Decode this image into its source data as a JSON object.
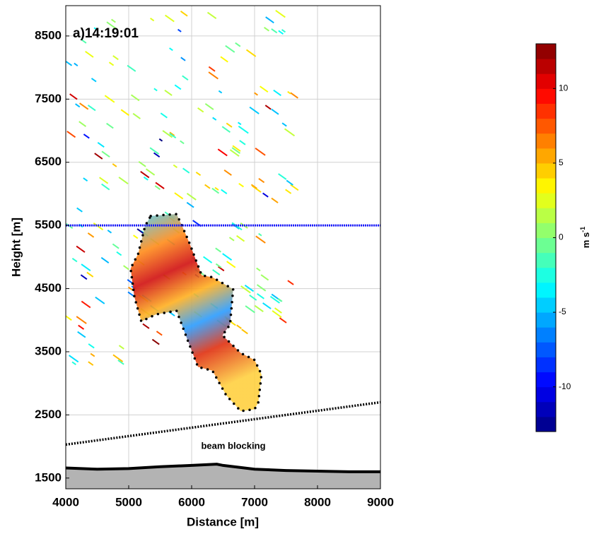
{
  "chart_data": {
    "type": "radar-section",
    "label": "a)14:19:01",
    "annotation": "beam blocking",
    "xlabel": "Distance [m]",
    "ylabel": "Height [m]",
    "xlim": [
      4000,
      9000
    ],
    "ylim": [
      1330,
      8980
    ],
    "xticks": [
      4000,
      5000,
      6000,
      7000,
      8000,
      9000
    ],
    "yticks": [
      1500,
      2500,
      3500,
      4500,
      5500,
      6500,
      7500,
      8500
    ],
    "grid": true,
    "colormap": "jet",
    "clim": [
      -13,
      13
    ],
    "cticks": [
      -10,
      -5,
      0,
      5,
      10
    ],
    "colorbar_label": {
      "text": "m s",
      "superscript": "-1"
    },
    "hline": {
      "y": 5500,
      "color": "#1a1aff"
    },
    "beam_line": {
      "x": [
        4000,
        9000
      ],
      "y": [
        2030,
        2700
      ],
      "color": "#000000"
    },
    "terrain": {
      "x": [
        4000,
        4500,
        5000,
        5500,
        6000,
        6400,
        6500,
        7000,
        7500,
        8000,
        8500,
        9000
      ],
      "y": [
        1660,
        1640,
        1650,
        1680,
        1700,
        1720,
        1700,
        1640,
        1620,
        1610,
        1600,
        1600
      ],
      "color": "#b3b3b3"
    },
    "outline": {
      "x": [
        5350,
        5760,
        5850,
        5970,
        6160,
        6330,
        6660,
        6610,
        6490,
        6780,
        7000,
        7110,
        7060,
        7000,
        6780,
        6550,
        6330,
        6100,
        5930,
        5760,
        5430,
        5200,
        5090,
        5030,
        5150,
        5260
      ],
      "y": [
        5650,
        5680,
        5490,
        5210,
        4710,
        4680,
        4490,
        3930,
        3760,
        3480,
        3370,
        3140,
        2700,
        2590,
        2560,
        2810,
        3200,
        3260,
        3700,
        4150,
        4090,
        3980,
        4370,
        4820,
        5050,
        5490
      ]
    }
  }
}
